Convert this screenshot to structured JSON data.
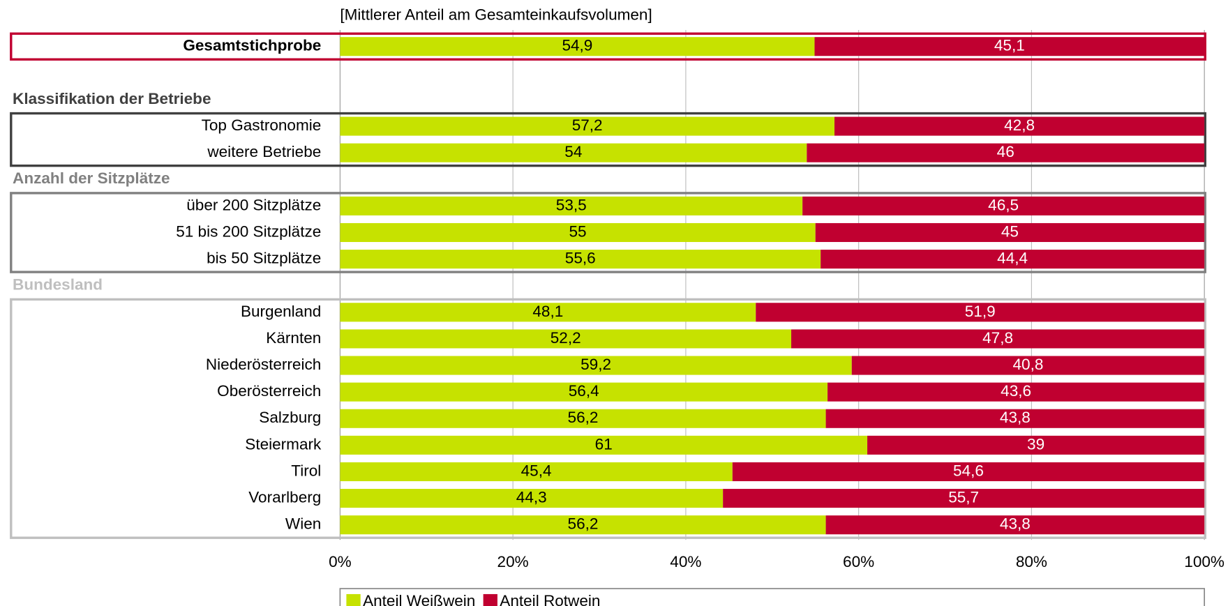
{
  "chart_data": {
    "type": "stacked-bar-horizontal",
    "title": "[Mittlerer Anteil am Gesamteinkaufsvolumen]",
    "categories": [
      "Gesamtstichprobe",
      null,
      "Klassifikation der Betriebe",
      "Top Gastronomie",
      "weitere Betriebe",
      "Anzahl der Sitzplätze",
      "über 200 Sitzplätze",
      "51 bis 200 Sitzplätze",
      "bis 50 Sitzplätze",
      "Bundesland",
      "Burgenland",
      "Kärnten",
      "Niederösterreich",
      "Oberösterreich",
      "Salzburg",
      "Steiermark",
      "Tirol",
      "Vorarlberg",
      "Wien"
    ],
    "series": [
      {
        "name": "Anteil Weißwein",
        "color": "#c6e200",
        "values": [
          54.9,
          null,
          null,
          57.2,
          54,
          null,
          53.5,
          55,
          55.6,
          null,
          48.1,
          52.2,
          59.2,
          56.4,
          56.2,
          61,
          45.4,
          44.3,
          56.2
        ],
        "value_labels": [
          "54,9",
          null,
          null,
          "57,2",
          "54",
          null,
          "53,5",
          "55",
          "55,6",
          null,
          "48,1",
          "52,2",
          "59,2",
          "56,4",
          "56,2",
          "61",
          "45,4",
          "44,3",
          "56,2"
        ]
      },
      {
        "name": "Anteil Rotwein",
        "color": "#c00030",
        "values": [
          45.1,
          null,
          null,
          42.8,
          46,
          null,
          46.5,
          45,
          44.4,
          null,
          51.9,
          47.8,
          40.8,
          43.6,
          43.8,
          39,
          54.6,
          55.7,
          43.8
        ],
        "value_labels": [
          "45,1",
          null,
          null,
          "42,8",
          "46",
          null,
          "46,5",
          "45",
          "44,4",
          null,
          "51,9",
          "47,8",
          "40,8",
          "43,6",
          "43,8",
          "39",
          "54,6",
          "55,7",
          "43,8"
        ]
      }
    ],
    "xlim": [
      0,
      100
    ],
    "xticks": [
      {
        "value": 0,
        "label": "0%"
      },
      {
        "value": 20,
        "label": "20%"
      },
      {
        "value": 40,
        "label": "40%"
      },
      {
        "value": 60,
        "label": "60%"
      },
      {
        "value": 80,
        "label": "80%"
      },
      {
        "value": 100,
        "label": "100%"
      }
    ],
    "grid": true
  }
}
